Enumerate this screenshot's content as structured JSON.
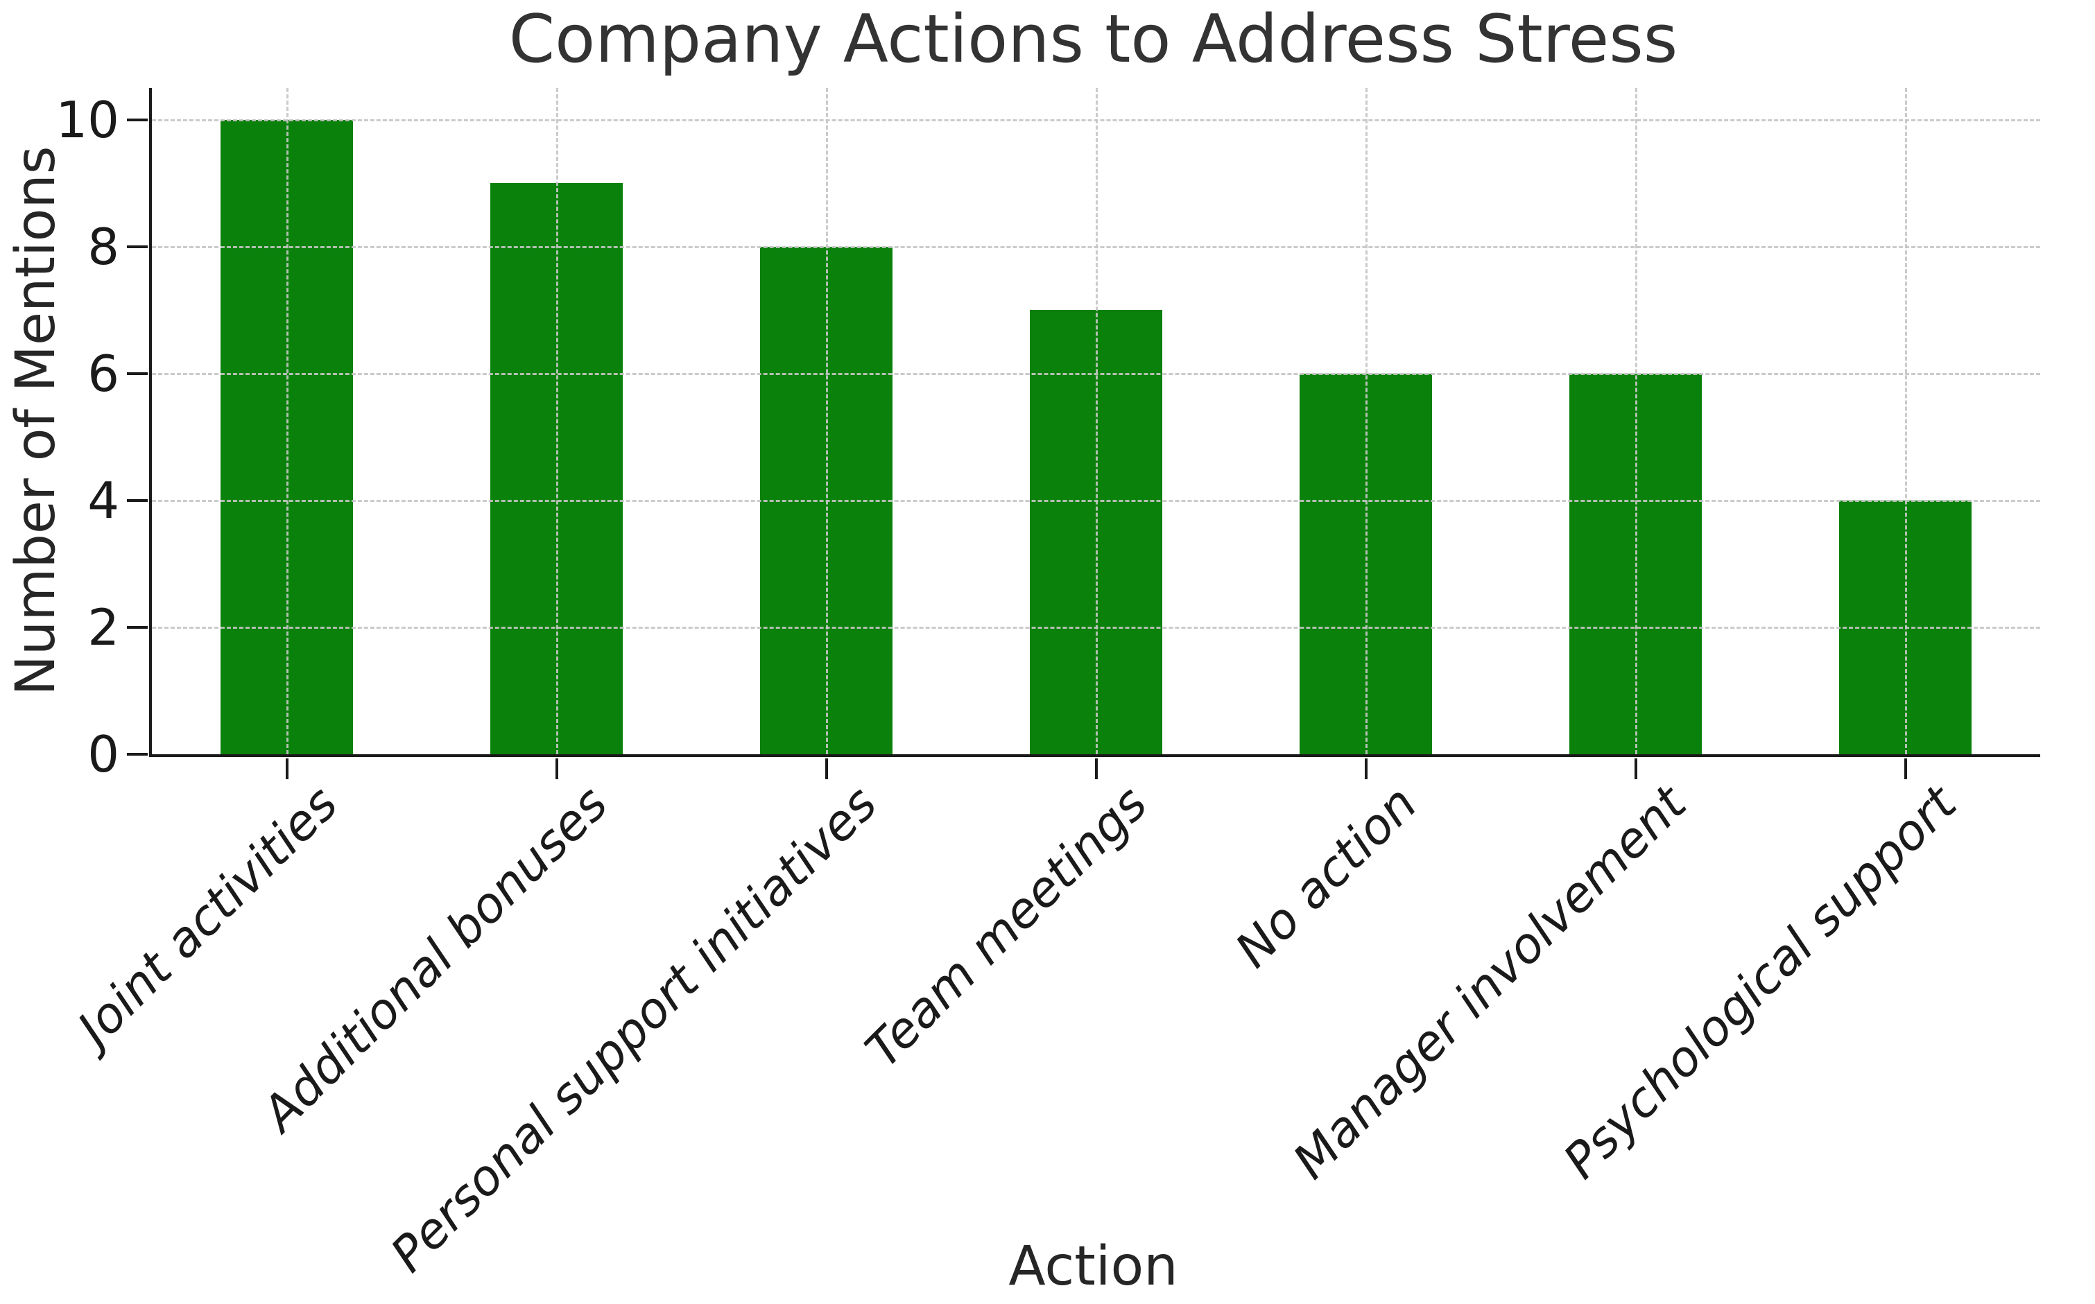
{
  "chart_data": {
    "type": "bar",
    "title": "Company Actions to Address Stress",
    "xlabel": "Action",
    "ylabel": "Number of Mentions",
    "categories": [
      "Joint activities",
      "Additional bonuses",
      "Personal support initiatives",
      "Team meetings",
      "No action",
      "Manager involvement",
      "Psychological support"
    ],
    "values": [
      10,
      9,
      8,
      7,
      6,
      6,
      4
    ],
    "yticks": [
      0,
      2,
      4,
      6,
      8,
      10
    ],
    "ylim": [
      0,
      10.5
    ],
    "legend": "none",
    "grid": "dashed both axes, drawn over bars",
    "xtick_style": "italic, rotated 45 degrees",
    "spines": "left and bottom only",
    "colors": {
      "bar": "#0a810a",
      "grid": "#c6c6c6",
      "axis": "#1a1a1a",
      "title_text": "#333333",
      "label_text": "#262626",
      "background": "#ffffff"
    }
  }
}
